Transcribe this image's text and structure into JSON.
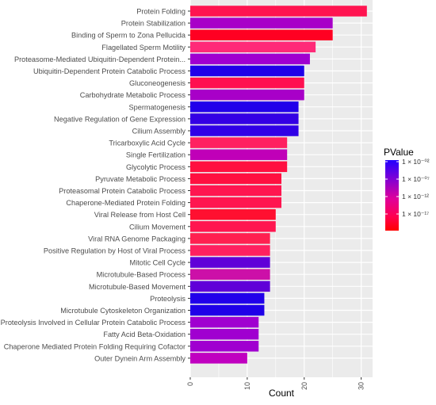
{
  "chart_data": {
    "type": "bar",
    "orientation": "horizontal",
    "xlabel": "Count",
    "ylabel": "",
    "xlim": [
      0,
      32
    ],
    "x_ticks": [
      0,
      10,
      20,
      30
    ],
    "grid": true,
    "categories": [
      "Protein Folding",
      "Protein Stabilization",
      "Binding of Sperm to Zona Pellucida",
      "Flagellated Sperm Motility",
      "Proteasome-Mediated Ubiquitin-Dependent Protein...",
      "Ubiquitin-Dependent Protein Catabolic Process",
      "Gluconeogenesis",
      "Carbohydrate Metabolic Process",
      "Spermatogenesis",
      "Negative Regulation of Gene Expression",
      "Cilium Assembly",
      "Tricarboxylic Acid Cycle",
      "Single Fertilization",
      "Glycolytic Process",
      "Pyruvate Metabolic Process",
      "Proteasomal Protein Catabolic Process",
      "Chaperone-Mediated Protein Folding",
      "Viral Release from Host Cell",
      "Cilium Movement",
      "Viral RNA Genome Packaging",
      "Positive Regulation by Host of Viral Process",
      "Mitotic Cell Cycle",
      "Microtubule-Based Process",
      "Microtubule-Based Movement",
      "Proteolysis",
      "Microtubule Cytoskeleton Organization",
      "Proteolysis Involved in Cellular Protein Catabolic Process",
      "Fatty Acid Beta-Oxidation",
      "Chaperone Mediated Protein Folding Requiring Cofactor",
      "Outer Dynein Arm Assembly"
    ],
    "values": [
      31,
      25,
      25,
      22,
      21,
      20,
      20,
      20,
      19,
      19,
      19,
      17,
      17,
      17,
      16,
      16,
      16,
      15,
      15,
      14,
      14,
      14,
      14,
      14,
      13,
      13,
      12,
      12,
      12,
      10
    ],
    "bar_colors": [
      "#ff1450",
      "#a800c8",
      "#ff0022",
      "#ff2a78",
      "#a000d0",
      "#2000e8",
      "#ff1050",
      "#a800c8",
      "#2200ea",
      "#3400e4",
      "#3000e6",
      "#ff2060",
      "#c000b8",
      "#ff1040",
      "#ff1040",
      "#ff1650",
      "#ff1650",
      "#ff1030",
      "#ff1650",
      "#ff2050",
      "#ff2060",
      "#6000d8",
      "#cc10a8",
      "#6000d8",
      "#2200ea",
      "#2000e8",
      "#a000d0",
      "#a000d0",
      "#a000d0",
      "#c000c0"
    ],
    "legend": {
      "title": "PValue",
      "position": "right",
      "labels": [
        "1 × 10⁻⁰²",
        "1 × 10⁻⁰⁷",
        "1 × 10⁻¹²",
        "1 × 10⁻¹⁷"
      ],
      "color_high_pvalue": "#2200ff",
      "color_low_pvalue": "#ff0000"
    }
  },
  "style": {
    "panel_background": "#ebebeb",
    "grid_major": "#ffffff",
    "axis_text": "#4d4d4d",
    "axis_title": "#000000"
  }
}
